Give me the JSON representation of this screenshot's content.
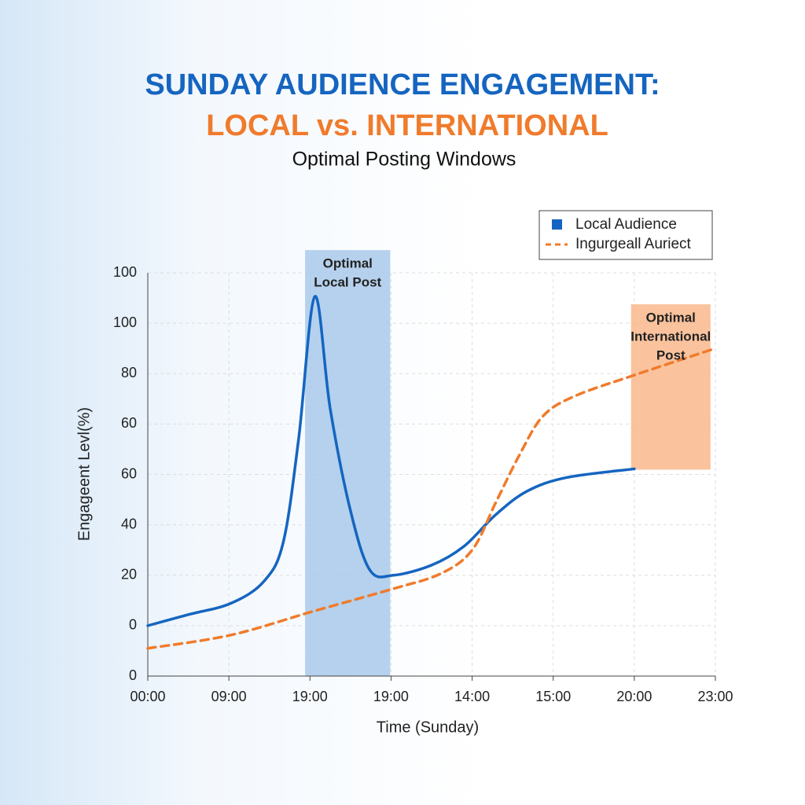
{
  "chart_data": {
    "type": "line",
    "title": "SUNDAY AUDIENCE ENGAGEMENT:",
    "title_line2": "LOCAL vs. INTERNATIONAL",
    "subtitle": "Optimal Posting Windows",
    "xlabel": "Time (Sunday)",
    "ylabel": "Engageent Levl(%)",
    "xlim": [
      0,
      7
    ],
    "xticks": [
      {
        "value": 0,
        "label": "00:00"
      },
      {
        "value": 1,
        "label": "09:00"
      },
      {
        "value": 2,
        "label": "19:00"
      },
      {
        "value": 3,
        "label": "19:00"
      },
      {
        "value": 4,
        "label": "14:00"
      },
      {
        "value": 5,
        "label": "15:00"
      },
      {
        "value": 6,
        "label": "20:00"
      },
      {
        "value": 7,
        "label": "23:00"
      }
    ],
    "ylim": [
      -20,
      140
    ],
    "yticks": [
      {
        "value": -20,
        "label": "0"
      },
      0,
      20,
      40,
      60,
      {
        "value": 80,
        "label": "60"
      },
      {
        "value": 100,
        "label": "80"
      },
      {
        "value": 120,
        "label": "100"
      },
      {
        "value": 140,
        "label": "100"
      }
    ],
    "grid": true,
    "legend": "top-right",
    "series": [
      {
        "name": "Local Audience",
        "color": "#1565c0",
        "style": "solid",
        "x": [
          0,
          0.5,
          1.02,
          1.43,
          1.67,
          1.86,
          2.06,
          2.25,
          2.5,
          2.74,
          3.03,
          3.5,
          3.9,
          4.29,
          4.68,
          5.17,
          6.0
        ],
        "values": [
          0,
          4.4,
          8.8,
          17.5,
          33,
          74,
          130.6,
          86,
          45.6,
          22,
          20,
          24,
          31.5,
          44,
          53.4,
          58.8,
          62.2
        ]
      },
      {
        "name": "Ingurgeall Auriect",
        "color": "#f07b2c",
        "style": "dashed",
        "x": [
          0,
          1.02,
          2.03,
          3.0,
          3.61,
          4.0,
          4.29,
          4.58,
          4.87,
          5.26,
          6.0,
          6.97
        ],
        "values": [
          -9,
          -3.75,
          5.6,
          14.4,
          20.6,
          30,
          48.75,
          67.5,
          83,
          91,
          99.4,
          109.7
        ]
      }
    ],
    "annotations": [
      {
        "lines": [
          "Optimal",
          "Local Post"
        ],
        "x0": 1.94,
        "x1": 2.99,
        "y0": -20,
        "y1": 149,
        "color": "#a9c9ea"
      },
      {
        "lines": [
          "Optimal",
          "International",
          "Post"
        ],
        "x0": 5.96,
        "x1": 6.94,
        "y0": 61.9,
        "y1": 127.5,
        "color": "#f9b98c"
      }
    ]
  }
}
